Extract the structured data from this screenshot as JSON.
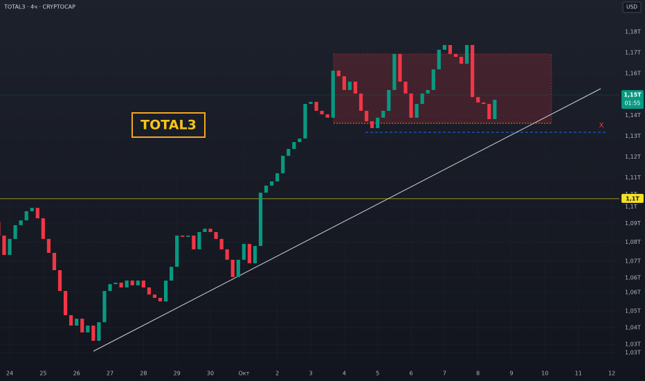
{
  "chart_data": {
    "type": "candlestick",
    "title": "TOTAL3 · 4ч · CRYPTOCAP",
    "currency": "USD",
    "annotation": "TOTAL3",
    "marker": "X",
    "up_color": "#089981",
    "down_color": "#f23645",
    "open": [
      1.0889,
      1.0822,
      1.0729,
      1.0806,
      1.0872,
      1.0895,
      1.0939,
      1.0955,
      1.0905,
      1.0806,
      1.0739,
      1.0656,
      1.0556,
      1.044,
      1.039,
      1.0423,
      1.0357,
      1.039,
      1.0317,
      1.0406,
      1.0556,
      1.0589,
      1.0596,
      1.0573,
      1.0606,
      1.0583,
      1.0606,
      1.0573,
      1.0539,
      1.0523,
      1.0506,
      1.0606,
      1.0672,
      1.0822,
      1.0816,
      1.0822,
      1.0756,
      1.0839,
      1.0855,
      1.0839,
      1.0806,
      1.0756,
      1.0706,
      1.0623,
      1.0706,
      1.0782,
      1.0689,
      1.0772,
      1.1028,
      1.1062,
      1.1082,
      1.1121,
      1.1205,
      1.1238,
      1.1271,
      1.1288,
      1.1454,
      1.1464,
      1.1421,
      1.1404,
      1.1388,
      1.1614,
      1.1587,
      1.1521,
      1.1561,
      1.1504,
      1.1421,
      1.1371,
      1.1338,
      1.1388,
      1.1421,
      1.1521,
      1.1694,
      1.1561,
      1.1504,
      1.1388,
      1.1454,
      1.1504,
      1.1521,
      1.162,
      1.1714,
      1.1737,
      1.1694,
      1.168,
      1.1647,
      1.1737,
      1.1487,
      1.1461,
      1.1454,
      1.1381
    ],
    "close": [
      1.0822,
      1.0729,
      1.0806,
      1.0872,
      1.0895,
      1.0939,
      1.0955,
      1.0905,
      1.0806,
      1.0739,
      1.0656,
      1.0556,
      1.044,
      1.039,
      1.0423,
      1.0357,
      1.039,
      1.0317,
      1.0406,
      1.0556,
      1.0589,
      1.0596,
      1.0573,
      1.0606,
      1.0583,
      1.0606,
      1.0573,
      1.0539,
      1.0523,
      1.0506,
      1.0606,
      1.0672,
      1.0822,
      1.0816,
      1.0822,
      1.0756,
      1.0839,
      1.0855,
      1.0839,
      1.0806,
      1.0756,
      1.0706,
      1.0623,
      1.0706,
      1.0782,
      1.0689,
      1.0772,
      1.1028,
      1.1062,
      1.1082,
      1.1121,
      1.1205,
      1.1238,
      1.1271,
      1.1288,
      1.1454,
      1.1464,
      1.1421,
      1.1404,
      1.1388,
      1.1614,
      1.1587,
      1.1521,
      1.1561,
      1.1504,
      1.1421,
      1.1371,
      1.1338,
      1.1388,
      1.1421,
      1.1521,
      1.1694,
      1.1561,
      1.1504,
      1.1388,
      1.1454,
      1.1504,
      1.1521,
      1.162,
      1.1714,
      1.1737,
      1.1694,
      1.168,
      1.1647,
      1.1737,
      1.1487,
      1.1461,
      1.1454,
      1.1381,
      1.1474
    ],
    "xlim": [
      0.26,
      111.36
    ],
    "xticks": [
      {
        "value": 2,
        "label": "24"
      },
      {
        "value": 8,
        "label": "25"
      },
      {
        "value": 14,
        "label": "26"
      },
      {
        "value": 20,
        "label": "27"
      },
      {
        "value": 26,
        "label": "28"
      },
      {
        "value": 32,
        "label": "29"
      },
      {
        "value": 38,
        "label": "30"
      },
      {
        "value": 44,
        "label": "Окт"
      },
      {
        "value": 50,
        "label": "2"
      },
      {
        "value": 56,
        "label": "3"
      },
      {
        "value": 62,
        "label": "4"
      },
      {
        "value": 68,
        "label": "5"
      },
      {
        "value": 74,
        "label": "6"
      },
      {
        "value": 80,
        "label": "7"
      },
      {
        "value": 86,
        "label": "8"
      },
      {
        "value": 92,
        "label": "9"
      },
      {
        "value": 98,
        "label": "10"
      },
      {
        "value": 104,
        "label": "11"
      },
      {
        "value": 110,
        "label": "12"
      }
    ],
    "ylim": [
      1.0207,
      1.1953
    ],
    "yticks": [
      {
        "value": 1.18,
        "label": "1,18T"
      },
      {
        "value": 1.17,
        "label": "1,17T"
      },
      {
        "value": 1.16,
        "label": "1,16T"
      },
      {
        "value": 1.14,
        "label": "1,14T"
      },
      {
        "value": 1.13,
        "label": "1,13T"
      },
      {
        "value": 1.12,
        "label": "1,12T"
      },
      {
        "value": 1.11,
        "label": "1,11T"
      },
      {
        "value": 1.102,
        "label": "1,1T"
      },
      {
        "value": 1.096,
        "label": "1,1T"
      },
      {
        "value": 1.088,
        "label": "1,09T"
      },
      {
        "value": 1.079,
        "label": "1,08T"
      },
      {
        "value": 1.07,
        "label": "1,07T"
      },
      {
        "value": 1.062,
        "label": "1,06T"
      },
      {
        "value": 1.055,
        "label": "1,06T"
      },
      {
        "value": 1.046,
        "label": "1,05T"
      },
      {
        "value": 1.038,
        "label": "1,04T"
      },
      {
        "value": 1.03,
        "label": "1,03T"
      },
      {
        "value": 1.026,
        "label": "1,03T"
      }
    ],
    "grid": true,
    "price_lines": [
      {
        "value": 1.0999,
        "label": "1,1T",
        "color": "#f5e125"
      },
      {
        "value": 1.1497,
        "label": "1,15T",
        "countdown": "01:55",
        "color": "#089981"
      }
    ]
  }
}
